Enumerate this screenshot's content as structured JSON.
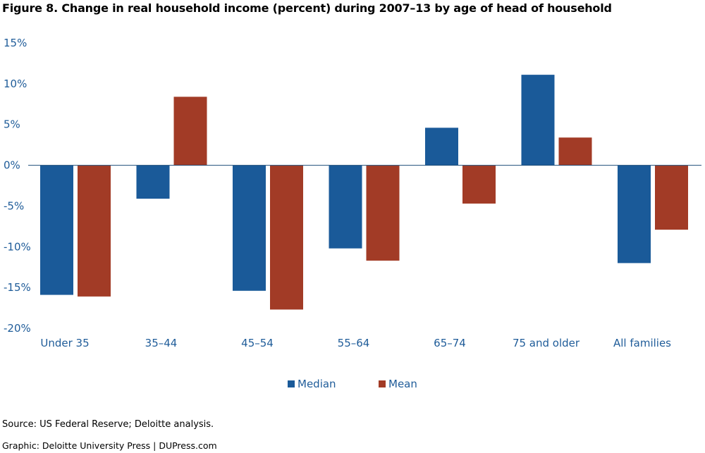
{
  "title": "Figure 8. Change in real household income (percent) during 2007–13 by age of head of household",
  "source": "Source: US Federal Reserve; Deloitte analysis.",
  "credit": "Graphic: Deloitte University Press  |  DUPress.com",
  "colors": {
    "median": "#1a5a99",
    "mean": "#a23b26",
    "axis": "#1f5c99",
    "zero_line": "#1f4e79"
  },
  "chart_data": {
    "type": "bar",
    "categories": [
      "Under 35",
      "35–44",
      "45–54",
      "55–64",
      "65–74",
      "75 and older",
      "All families"
    ],
    "series": [
      {
        "name": "Median",
        "values": [
          -15.9,
          -4.1,
          -15.4,
          -10.2,
          4.6,
          11.1,
          -12.0
        ]
      },
      {
        "name": "Mean",
        "values": [
          -16.1,
          8.4,
          -17.7,
          -11.7,
          -4.7,
          3.4,
          -7.9
        ]
      }
    ],
    "ylim": [
      -20,
      15
    ],
    "yticks": [
      15,
      10,
      5,
      0,
      -5,
      -10,
      -15,
      -20
    ],
    "ytick_labels": [
      "15%",
      "10%",
      "5%",
      "0%",
      "-5%",
      "-10%",
      "-15%",
      "-20%"
    ],
    "xlabel": "",
    "ylabel": "",
    "grid": false,
    "legend": "bottom"
  }
}
